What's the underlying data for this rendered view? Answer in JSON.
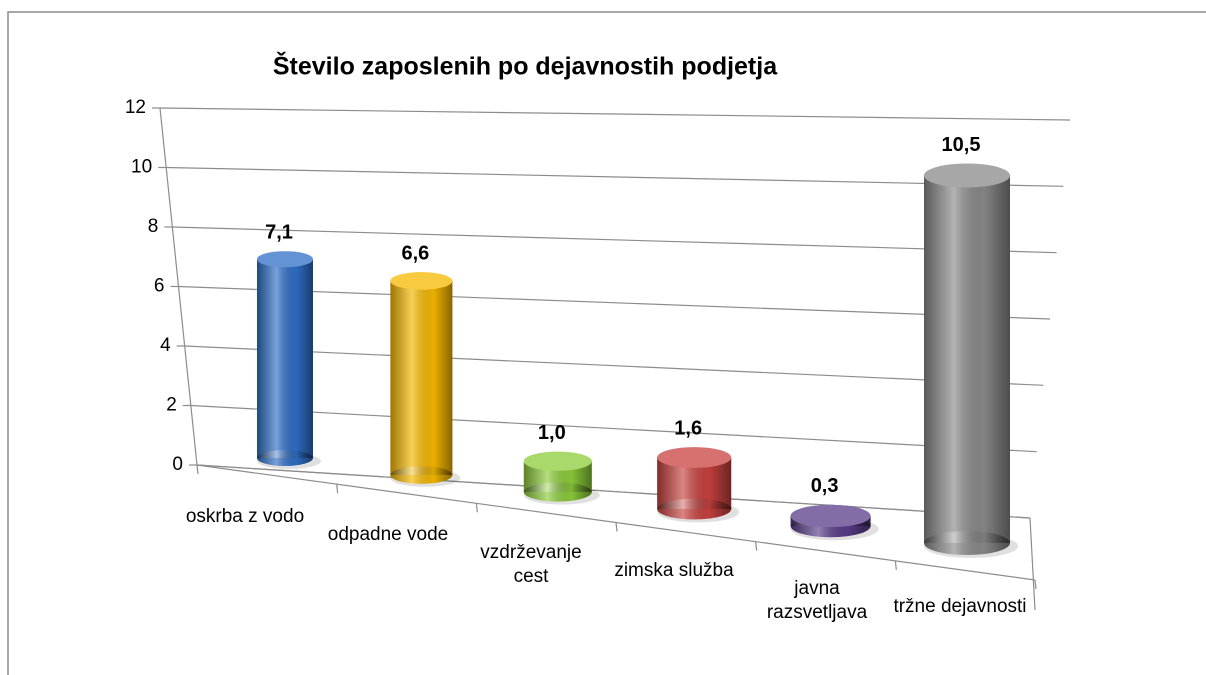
{
  "chart_data": {
    "type": "bar3d",
    "title": "Število zaposlenih po dejavnostih podjetja",
    "categories": [
      "oskrba z vodo",
      "odpadne vode",
      "vzdrževanje cest",
      "zimska služba",
      "javna razsvetljava",
      "tržne dejavnosti"
    ],
    "values": [
      7.1,
      6.6,
      1.0,
      1.6,
      0.3,
      10.5
    ],
    "value_labels": [
      "7,1",
      "6,6",
      "1,0",
      "1,6",
      "0,3",
      "10,5"
    ],
    "colors": [
      "#2f6fc6",
      "#f5b800",
      "#8ccc3a",
      "#c8423f",
      "#5a3d8a",
      "#8a8a8a"
    ],
    "ylim": [
      0,
      12
    ],
    "yticks": [
      0,
      2,
      4,
      6,
      8,
      10,
      12
    ],
    "grid": true
  }
}
